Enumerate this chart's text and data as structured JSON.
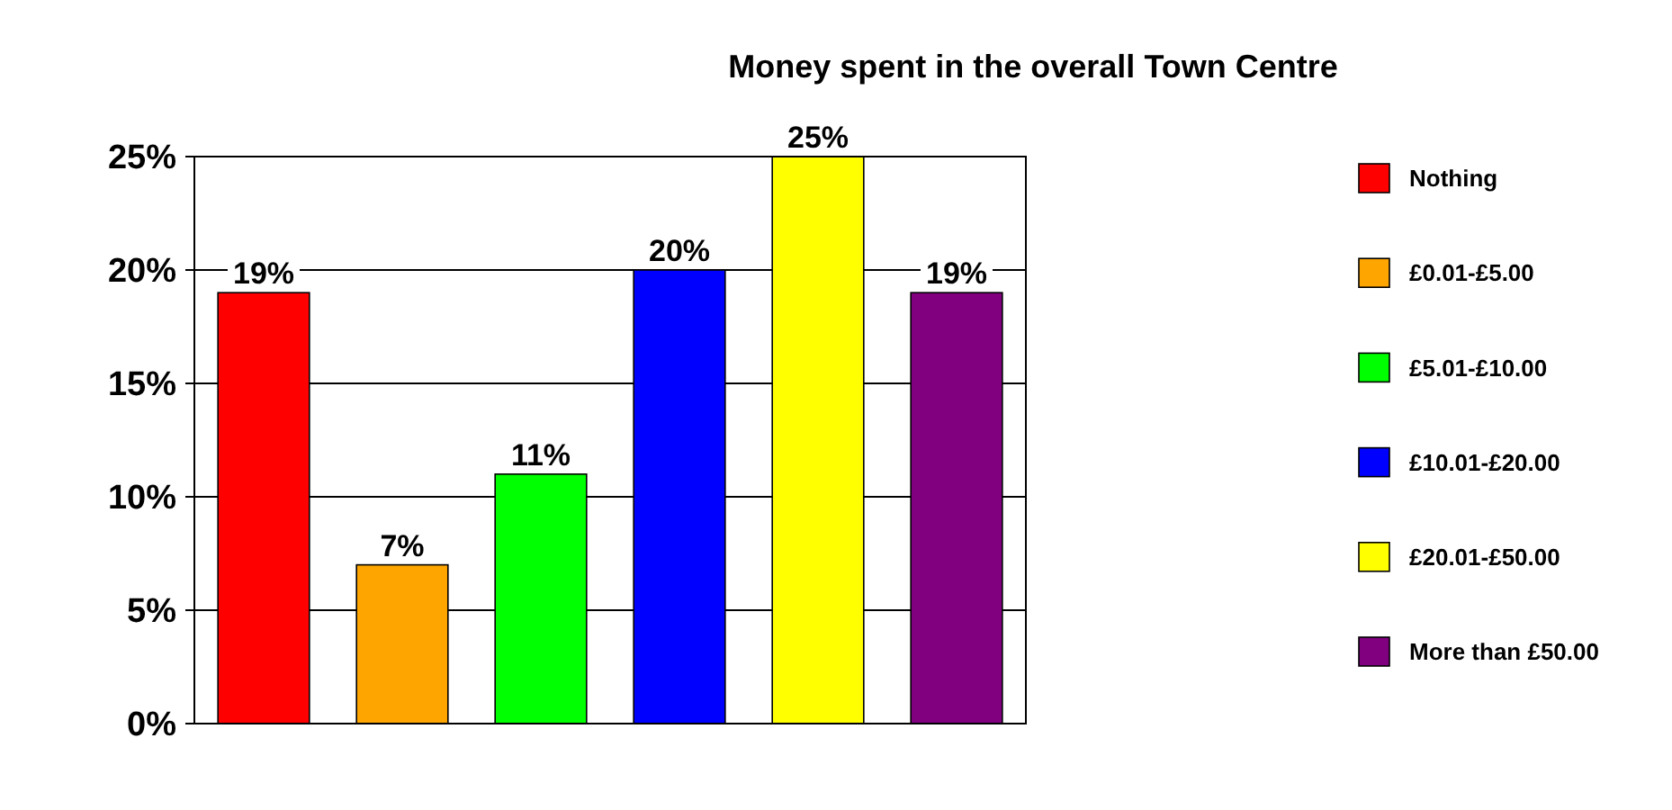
{
  "chart_data": {
    "type": "bar",
    "title": "Money spent in the overall Town Centre",
    "categories": [
      null
    ],
    "series": [
      {
        "name": "Nothing",
        "color": "#ff0000",
        "values": [
          19
        ],
        "value_labels": [
          "19%"
        ]
      },
      {
        "name": "£0.01-£5.00",
        "color": "#ffa500",
        "values": [
          7
        ],
        "value_labels": [
          "7%"
        ]
      },
      {
        "name": "£5.01-£10.00",
        "color": "#00ff00",
        "values": [
          11
        ],
        "value_labels": [
          "11%"
        ]
      },
      {
        "name": "£10.01-£20.00",
        "color": "#0000ff",
        "values": [
          20
        ],
        "value_labels": [
          "20%"
        ]
      },
      {
        "name": "£20.01-£50.00",
        "color": "#ffff00",
        "values": [
          25
        ],
        "value_labels": [
          "25%"
        ]
      },
      {
        "name": "More than £50.00",
        "color": "#800080",
        "values": [
          19
        ],
        "value_labels": [
          "19%"
        ]
      }
    ],
    "ylim": [
      0,
      25
    ],
    "yticks": [
      {
        "value": 0,
        "label": "0%"
      },
      {
        "value": 5,
        "label": "5%"
      },
      {
        "value": 10,
        "label": "10%"
      },
      {
        "value": 15,
        "label": "15%"
      },
      {
        "value": 20,
        "label": "20%"
      },
      {
        "value": 25,
        "label": "25%"
      }
    ],
    "grid": "y",
    "legend": "right"
  }
}
